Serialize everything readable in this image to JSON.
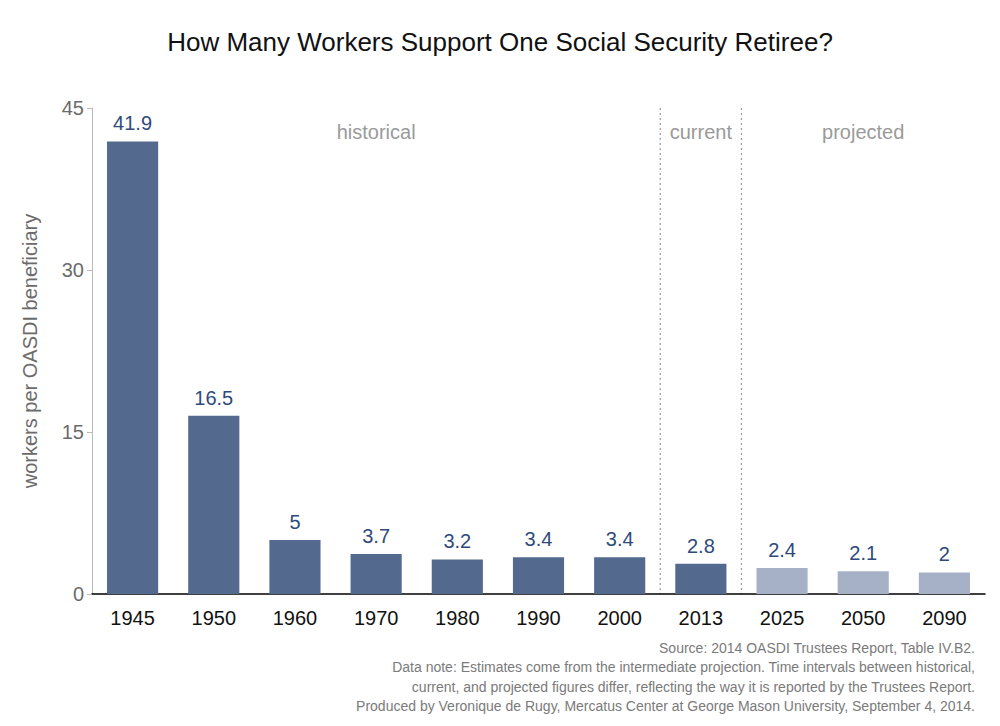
{
  "chart_data": {
    "type": "bar",
    "title": "How Many Workers Support One Social Security Retiree?",
    "ylabel": "workers per OASDI beneficiary",
    "categories": [
      "1945",
      "1950",
      "1960",
      "1970",
      "1980",
      "1990",
      "2000",
      "2013",
      "2025",
      "2050",
      "2090"
    ],
    "values": [
      41.9,
      16.5,
      5,
      3.7,
      3.2,
      3.4,
      3.4,
      2.8,
      2.4,
      2.1,
      2
    ],
    "colors": [
      "#54698e",
      "#54698e",
      "#54698e",
      "#54698e",
      "#54698e",
      "#54698e",
      "#54698e",
      "#54698e",
      "#a6b1c8",
      "#a6b1c8",
      "#a6b1c8"
    ],
    "ylim": [
      0,
      45
    ],
    "yticks": [
      0,
      15,
      30,
      45
    ],
    "grid": false,
    "data_labels": true,
    "annotations": [
      {
        "text": "historical",
        "from": "1945",
        "to": "2000"
      },
      {
        "text": "current",
        "from": "2013",
        "to": "2013"
      },
      {
        "text": "projected",
        "from": "2025",
        "to": "2090"
      }
    ],
    "notes": [
      "Source: 2014 OASDI Trustees Report, Table IV.B2.",
      "Data note: Estimates come from the intermediate projection. Time intervals between historical,",
      "current, and projected figures differ, reflecting the way it is reported by the Trustees Report.",
      "Produced by Veronique de Rugy, Mercatus Center at George Mason University, September 4, 2014."
    ]
  }
}
